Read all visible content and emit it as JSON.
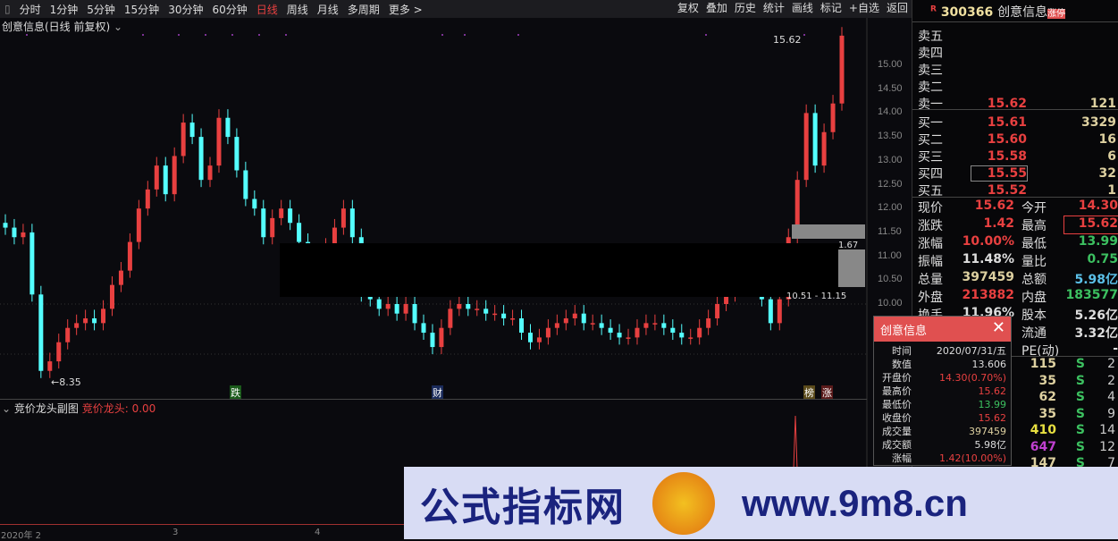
{
  "toolbar": {
    "periods": [
      "分时",
      "1分钟",
      "5分钟",
      "15分钟",
      "30分钟",
      "60分钟",
      "日线",
      "周线",
      "月线",
      "多周期",
      "更多 >"
    ],
    "active": "日线",
    "actions": [
      "复权",
      "叠加",
      "历史",
      "统计",
      "画线",
      "标记",
      "+自选",
      "返回"
    ]
  },
  "chart": {
    "title": "创意信息(日线 前复权)",
    "y_ticks": [
      "15.00",
      "14.50",
      "14.00",
      "13.50",
      "13.00",
      "12.50",
      "12.00",
      "11.50",
      "11.00",
      "10.50",
      "10.00"
    ],
    "high_label": "15.62",
    "low_label": "8.35",
    "range_label": "1.67",
    "range_label2": "10.51 - 11.15",
    "markers": [
      "跌",
      "财",
      "榜",
      "涨"
    ],
    "closes": [
      11.6,
      11.4,
      11.5,
      10.2,
      8.6,
      8.8,
      9.2,
      9.5,
      9.6,
      9.7,
      9.6,
      9.9,
      10.4,
      10.7,
      11.3,
      12.0,
      12.4,
      12.9,
      12.3,
      13.1,
      13.8,
      13.5,
      12.6,
      12.9,
      13.9,
      13.5,
      12.8,
      12.2,
      12.0,
      11.4,
      11.8,
      12.0,
      11.7,
      11.3,
      11.0,
      10.8,
      11.2,
      11.6,
      12.0,
      11.4,
      10.2,
      10.1,
      9.9,
      10.0,
      9.8,
      10.0,
      9.6,
      9.4,
      9.1,
      9.5,
      9.9,
      10.0,
      9.9,
      9.9,
      9.8,
      9.8,
      9.7,
      9.7,
      9.4,
      9.2,
      9.3,
      9.5,
      9.6,
      9.7,
      9.8,
      9.6,
      9.6,
      9.5,
      9.4,
      9.3,
      9.3,
      9.5,
      9.6,
      9.6,
      9.5,
      9.4,
      9.3,
      9.3,
      9.5,
      9.7,
      10.0,
      10.2,
      10.3,
      10.5,
      10.4,
      10.1,
      9.6,
      10.1,
      11.4,
      12.6,
      14.0,
      12.9,
      13.6,
      14.2,
      15.62
    ],
    "up_color": "#e84040",
    "down_color": "#54ffff"
  },
  "sub": {
    "title": "竞价龙头副图",
    "indicator": "竞价龙头: 0.00"
  },
  "dates": {
    "d1": "2020年 2",
    "d2": "3",
    "d3": "4"
  },
  "panel": {
    "flag": "R",
    "code": "300366",
    "name": "创意信息",
    "badge": "涨停",
    "asks": [
      {
        "k": "卖五",
        "p": "",
        "v": ""
      },
      {
        "k": "卖四",
        "p": "",
        "v": ""
      },
      {
        "k": "卖三",
        "p": "",
        "v": ""
      },
      {
        "k": "卖二",
        "p": "",
        "v": ""
      },
      {
        "k": "卖一",
        "p": "15.62",
        "v": "121"
      }
    ],
    "bids": [
      {
        "k": "买一",
        "p": "15.61",
        "v": "3329"
      },
      {
        "k": "买二",
        "p": "15.60",
        "v": "16"
      },
      {
        "k": "买三",
        "p": "15.58",
        "v": "6"
      },
      {
        "k": "买四",
        "p": "15.55",
        "v": "32"
      },
      {
        "k": "买五",
        "p": "15.52",
        "v": "1"
      }
    ],
    "quote": [
      [
        {
          "k": "现价",
          "v": "15.62",
          "c": "#e84040"
        },
        {
          "k": "今开",
          "v": "14.30",
          "c": "#e84040"
        }
      ],
      [
        {
          "k": "涨跌",
          "v": "1.42",
          "c": "#e84040"
        },
        {
          "k": "最高",
          "v": "15.62",
          "c": "#e84040"
        }
      ],
      [
        {
          "k": "涨幅",
          "v": "10.00%",
          "c": "#e84040"
        },
        {
          "k": "最低",
          "v": "13.99",
          "c": "#3cc060"
        }
      ],
      [
        {
          "k": "振幅",
          "v": "11.48%",
          "c": "#ddd"
        },
        {
          "k": "量比",
          "v": "0.75",
          "c": "#3cc060"
        }
      ],
      [
        {
          "k": "总量",
          "v": "397459",
          "c": "#ddd0a0"
        },
        {
          "k": "总额",
          "v": "5.98亿",
          "c": "#5bc0e8"
        }
      ],
      [
        {
          "k": "外盘",
          "v": "213882",
          "c": "#e84040"
        },
        {
          "k": "内盘",
          "v": "183577",
          "c": "#3cc060"
        }
      ],
      [
        {
          "k": "换手",
          "v": "11.96%",
          "c": "#ddd"
        },
        {
          "k": "股本",
          "v": "5.26亿",
          "c": "#ddd"
        }
      ],
      [
        {
          "k": "",
          "v": "",
          "c": "#ddd"
        },
        {
          "k": "流通",
          "v": "3.32亿",
          "c": "#ddd"
        }
      ],
      [
        {
          "k": "",
          "v": "",
          "c": "#ddd"
        },
        {
          "k": "PE(动)",
          "v": "-",
          "c": "#ddd"
        }
      ]
    ],
    "ticks": [
      {
        "v": "115",
        "s": "S",
        "n": "2",
        "c": "#ddd0a0"
      },
      {
        "v": "35",
        "s": "S",
        "n": "2",
        "c": "#ddd0a0"
      },
      {
        "v": "62",
        "s": "S",
        "n": "4",
        "c": "#ddd0a0"
      },
      {
        "v": "35",
        "s": "S",
        "n": "9",
        "c": "#ddd0a0"
      },
      {
        "v": "410",
        "s": "S",
        "n": "14",
        "c": "#e8e040"
      },
      {
        "v": "647",
        "s": "S",
        "n": "12",
        "c": "#c040d0"
      },
      {
        "v": "147",
        "s": "S",
        "n": "7",
        "c": "#ddd0a0"
      }
    ]
  },
  "popup": {
    "title": "创意信息",
    "rows": [
      {
        "k": "时间",
        "v": "2020/07/31/五",
        "c": "#ddd"
      },
      {
        "k": "数值",
        "v": "13.606",
        "c": "#ddd"
      },
      {
        "k": "开盘价",
        "v": "14.30(0.70%)",
        "c": "#e84040"
      },
      {
        "k": "最高价",
        "v": "15.62",
        "c": "#e84040"
      },
      {
        "k": "最低价",
        "v": "13.99",
        "c": "#3cc060"
      },
      {
        "k": "收盘价",
        "v": "15.62",
        "c": "#e84040"
      },
      {
        "k": "成交量",
        "v": "397459",
        "c": "#ddd0a0"
      },
      {
        "k": "成交额",
        "v": "5.98亿",
        "c": "#ddd"
      },
      {
        "k": "涨幅",
        "v": "1.42(10.00%)",
        "c": "#e84040"
      }
    ]
  },
  "watermark": {
    "cn": "公式指标网",
    "url": "www.9m8.cn"
  }
}
